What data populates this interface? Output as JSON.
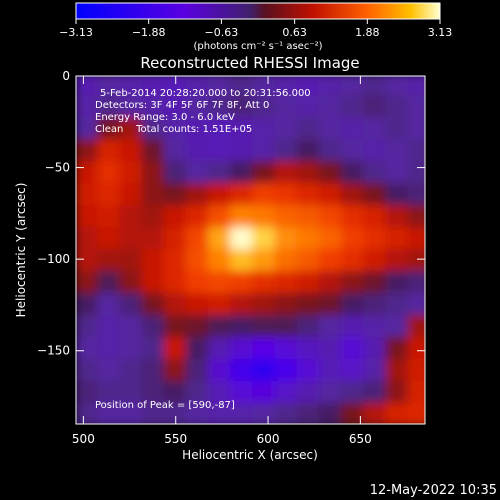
{
  "chart_data": {
    "type": "heatmap",
    "title": "Reconstructed RHESSI Image",
    "xlabel": "Heliocentric X (arcsec)",
    "ylabel": "Heliocentric Y (arcsec)",
    "xlim": [
      496,
      685
    ],
    "ylim": [
      -190,
      0
    ],
    "x_ticks": [
      500,
      550,
      600,
      650
    ],
    "y_ticks": [
      0,
      -50,
      -100,
      -150
    ],
    "colorbar": {
      "range": [
        -3.13,
        3.13
      ],
      "ticks": [
        "-3.13",
        "-1.88",
        "-0.63",
        "0.63",
        "1.88",
        "3.13"
      ],
      "unit_label": "(photons cm⁻² s⁻¹ asec⁻²)"
    },
    "annotations": [
      "5-Feb-2014 20:28:20.000 to 20:31:56.000",
      "Detectors: 3F 4F 5F 6F 7F 8F, Att 0",
      "Energy Range: 3.0 - 6.0 keV",
      "Clean    Total counts: 1.51E+05"
    ],
    "peak_label": "Position of Peak = [590,-87]",
    "peak": {
      "x": 590,
      "y": -87,
      "value": 3.13
    },
    "image_grid": {
      "x": [
        502,
        514,
        526,
        538,
        550,
        562,
        574,
        586,
        598,
        610,
        622,
        634,
        646,
        658,
        670,
        682
      ],
      "y": [
        -5,
        -17,
        -29,
        -41,
        -53,
        -65,
        -77,
        -89,
        -101,
        -113,
        -125,
        -137,
        -149,
        -161,
        -173,
        -185
      ],
      "values": [
        [
          -0.8,
          -0.6,
          -0.7,
          -0.8,
          -0.9,
          -0.7,
          -0.6,
          -0.5,
          -0.6,
          -0.7,
          -0.8,
          -0.7,
          -0.6,
          -0.5,
          -0.6,
          -0.7
        ],
        [
          -0.7,
          -0.5,
          -0.6,
          -0.7,
          -0.8,
          -0.6,
          -0.5,
          -0.4,
          -0.5,
          -0.6,
          -0.7,
          -0.6,
          -0.5,
          -0.4,
          -0.5,
          -0.6
        ],
        [
          -0.6,
          0.2,
          0.4,
          -0.5,
          -0.7,
          -0.8,
          -0.9,
          -0.8,
          -0.7,
          -0.6,
          -0.5,
          -0.6,
          -0.7,
          -0.6,
          -0.5,
          -0.6
        ],
        [
          0.3,
          0.8,
          0.6,
          0.1,
          -0.6,
          -0.8,
          -0.9,
          -0.8,
          -0.7,
          -0.5,
          -0.3,
          -0.5,
          -0.6,
          -0.7,
          -0.6,
          -0.5
        ],
        [
          0.6,
          1.0,
          0.7,
          0.3,
          -0.4,
          -0.6,
          -0.5,
          -0.3,
          0.2,
          0.5,
          0.4,
          0.2,
          -0.3,
          -0.5,
          -0.6,
          -0.5
        ],
        [
          0.7,
          0.9,
          0.6,
          0.3,
          0.2,
          0.4,
          0.6,
          0.9,
          1.2,
          1.1,
          0.9,
          0.7,
          0.4,
          0.2,
          -0.3,
          -0.4
        ],
        [
          0.6,
          0.7,
          0.5,
          0.4,
          0.6,
          0.9,
          1.4,
          1.9,
          1.8,
          1.6,
          1.5,
          1.3,
          1.0,
          0.8,
          0.5,
          0.3
        ],
        [
          0.5,
          0.6,
          0.5,
          0.5,
          0.8,
          1.3,
          2.2,
          3.1,
          2.6,
          2.0,
          1.8,
          1.6,
          1.2,
          1.0,
          0.8,
          0.6
        ],
        [
          0.5,
          0.4,
          0.4,
          0.6,
          0.9,
          1.4,
          1.9,
          2.4,
          2.1,
          1.7,
          1.5,
          1.2,
          1.0,
          0.7,
          0.5,
          0.4
        ],
        [
          0.3,
          -0.2,
          0.3,
          0.6,
          0.9,
          1.2,
          1.3,
          1.2,
          1.0,
          0.9,
          0.7,
          0.5,
          0.3,
          0.1,
          -0.3,
          -0.4
        ],
        [
          -0.3,
          -0.6,
          -0.4,
          0.2,
          0.5,
          0.6,
          0.7,
          0.5,
          0.4,
          0.3,
          0.2,
          0.1,
          -0.3,
          -0.4,
          -0.5,
          -0.6
        ],
        [
          -0.5,
          -0.7,
          -0.6,
          -0.4,
          0.2,
          0.1,
          -0.2,
          -0.3,
          -0.2,
          -0.2,
          -0.4,
          -0.6,
          -0.8,
          -0.7,
          -0.6,
          0.4
        ],
        [
          -0.6,
          -0.7,
          -0.6,
          -0.5,
          0.6,
          -0.3,
          -0.8,
          -1.2,
          -1.5,
          -1.3,
          -1.0,
          -0.8,
          -1.3,
          -0.8,
          0.2,
          0.6
        ],
        [
          -0.5,
          -0.6,
          -0.5,
          -0.4,
          0.3,
          -0.4,
          -1.2,
          -1.9,
          -2.2,
          -1.8,
          -1.3,
          -0.9,
          -1.1,
          -0.7,
          0.4,
          0.7
        ],
        [
          -0.4,
          -0.5,
          -0.5,
          -0.4,
          -0.3,
          -0.5,
          -0.9,
          -1.3,
          -1.4,
          -1.1,
          -0.8,
          -0.6,
          -0.5,
          -0.4,
          0.3,
          0.8
        ],
        [
          -0.5,
          -0.6,
          -0.6,
          -0.5,
          -0.5,
          -0.6,
          -0.7,
          -0.7,
          -0.6,
          -0.5,
          -0.4,
          -0.3,
          0.2,
          0.5,
          0.8,
          0.9
        ]
      ]
    }
  },
  "footer": {
    "date": "12-May-2022 10:35"
  }
}
